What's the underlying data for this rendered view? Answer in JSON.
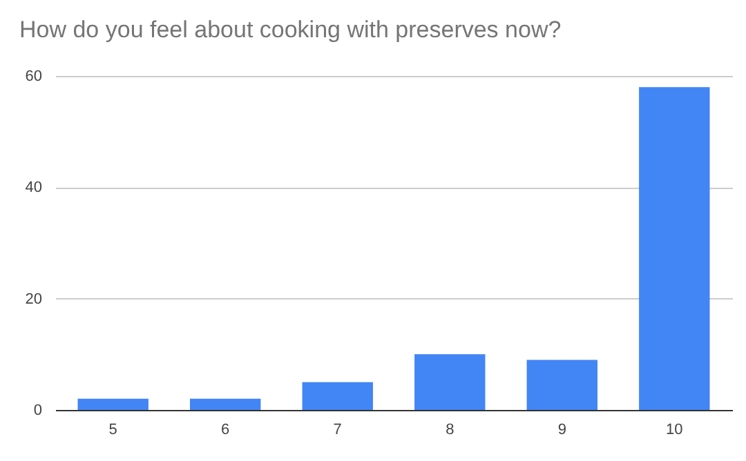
{
  "chart_data": {
    "type": "bar",
    "title": "How do you feel about cooking with preserves now?",
    "categories": [
      "5",
      "6",
      "7",
      "8",
      "9",
      "10"
    ],
    "values": [
      2,
      2,
      5,
      10,
      9,
      58
    ],
    "color": "#4285f4",
    "ylim": [
      0,
      60
    ],
    "yticks": [
      0,
      20,
      40,
      60
    ],
    "grid": "y"
  }
}
